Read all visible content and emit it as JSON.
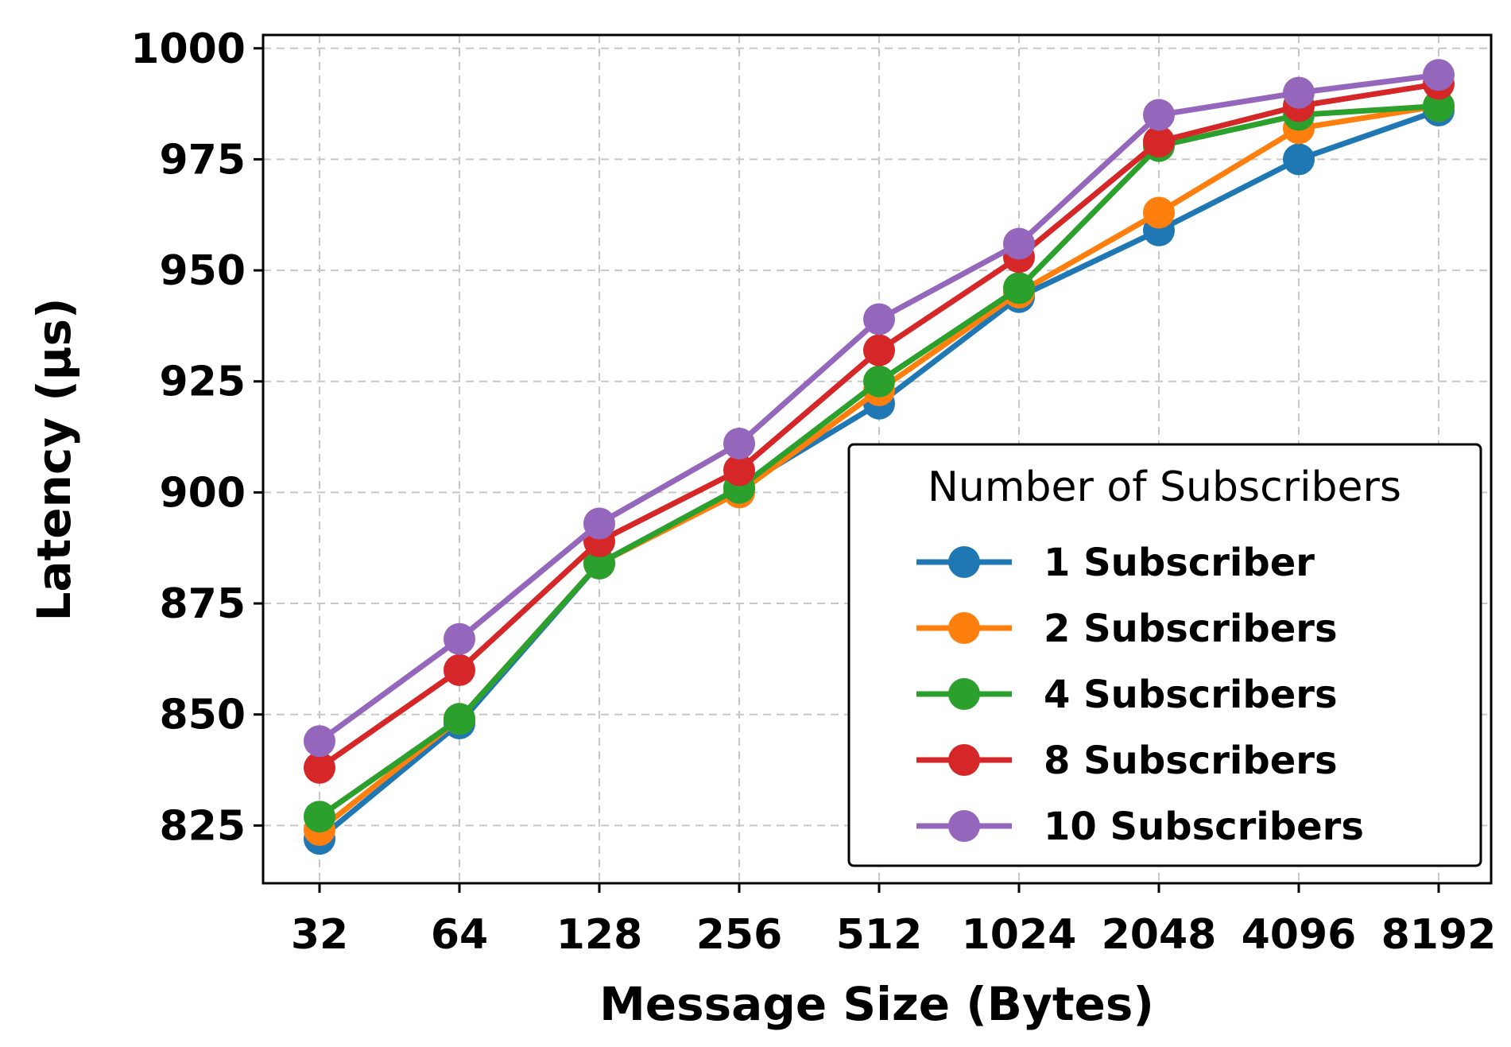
{
  "chart_data": {
    "type": "line",
    "title": "",
    "xlabel": "Message Size (Bytes)",
    "ylabel": "Latency (μs)",
    "categories": [
      "32",
      "64",
      "128",
      "256",
      "512",
      "1024",
      "2048",
      "4096",
      "8192"
    ],
    "ylim": [
      812,
      1003
    ],
    "yticks": [
      825,
      850,
      875,
      900,
      925,
      950,
      975,
      1000
    ],
    "grid": true,
    "legend": {
      "title": "Number of Subscribers",
      "placement": "lower-right"
    },
    "series": [
      {
        "name": "1 Subscriber",
        "color": "#1f77b4",
        "values": [
          822,
          848,
          884,
          901,
          920,
          944,
          959,
          975,
          986
        ]
      },
      {
        "name": "2 Subscribers",
        "color": "#ff7f0e",
        "values": [
          824,
          849,
          884,
          900,
          923,
          945,
          963,
          982,
          987
        ]
      },
      {
        "name": "4 Subscribers",
        "color": "#2ca02c",
        "values": [
          827,
          849,
          884,
          901,
          925,
          946,
          978,
          985,
          987
        ]
      },
      {
        "name": "8 Subscribers",
        "color": "#d62728",
        "values": [
          838,
          860,
          889,
          905,
          932,
          953,
          979,
          987,
          992
        ]
      },
      {
        "name": "10 Subscribers",
        "color": "#9467bd",
        "values": [
          844,
          867,
          893,
          911,
          939,
          956,
          985,
          990,
          994
        ]
      }
    ]
  }
}
